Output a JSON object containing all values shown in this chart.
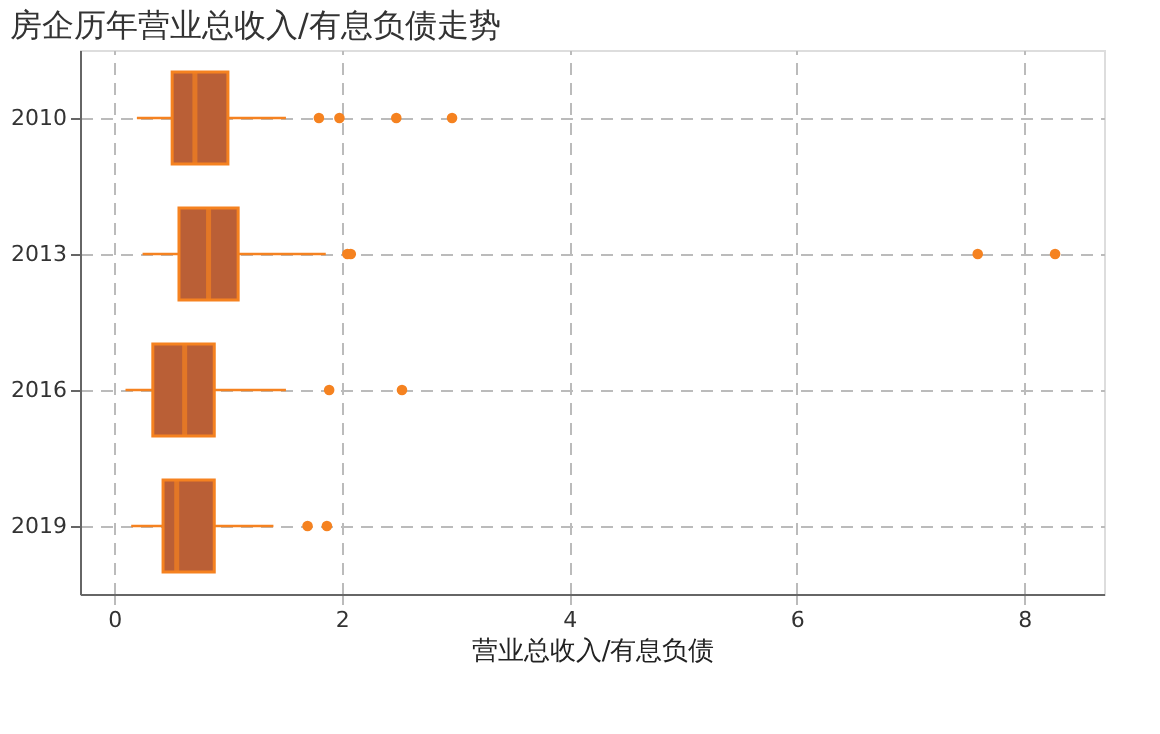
{
  "chart_data": {
    "type": "box",
    "title": "房企历年营业总收入/有息负债走势",
    "xlabel": "营业总收入/有息负债",
    "orientation": "horizontal",
    "categories": [
      "2010",
      "2013",
      "2016",
      "2019"
    ],
    "series": [
      {
        "color": "#f58220",
        "boxes": [
          {
            "low": 0.2,
            "q1": 0.51,
            "median": 0.71,
            "q3": 1.0,
            "high": 1.51,
            "outliers": [
              1.8,
              1.98,
              2.48,
              2.97
            ]
          },
          {
            "low": 0.25,
            "q1": 0.57,
            "median": 0.83,
            "q3": 1.09,
            "high": 1.86,
            "outliers": [
              2.05,
              2.08,
              7.59,
              8.27
            ]
          },
          {
            "low": 0.1,
            "q1": 0.34,
            "median": 0.62,
            "q3": 0.88,
            "high": 1.51,
            "outliers": [
              1.89,
              2.53
            ]
          },
          {
            "low": 0.15,
            "q1": 0.43,
            "median": 0.55,
            "q3": 0.88,
            "high": 1.4,
            "outliers": [
              1.7,
              1.87
            ]
          }
        ]
      }
    ],
    "xlim": [
      -0.3,
      8.7
    ],
    "xticks": [
      0,
      2,
      4,
      6,
      8
    ],
    "grid": true
  }
}
